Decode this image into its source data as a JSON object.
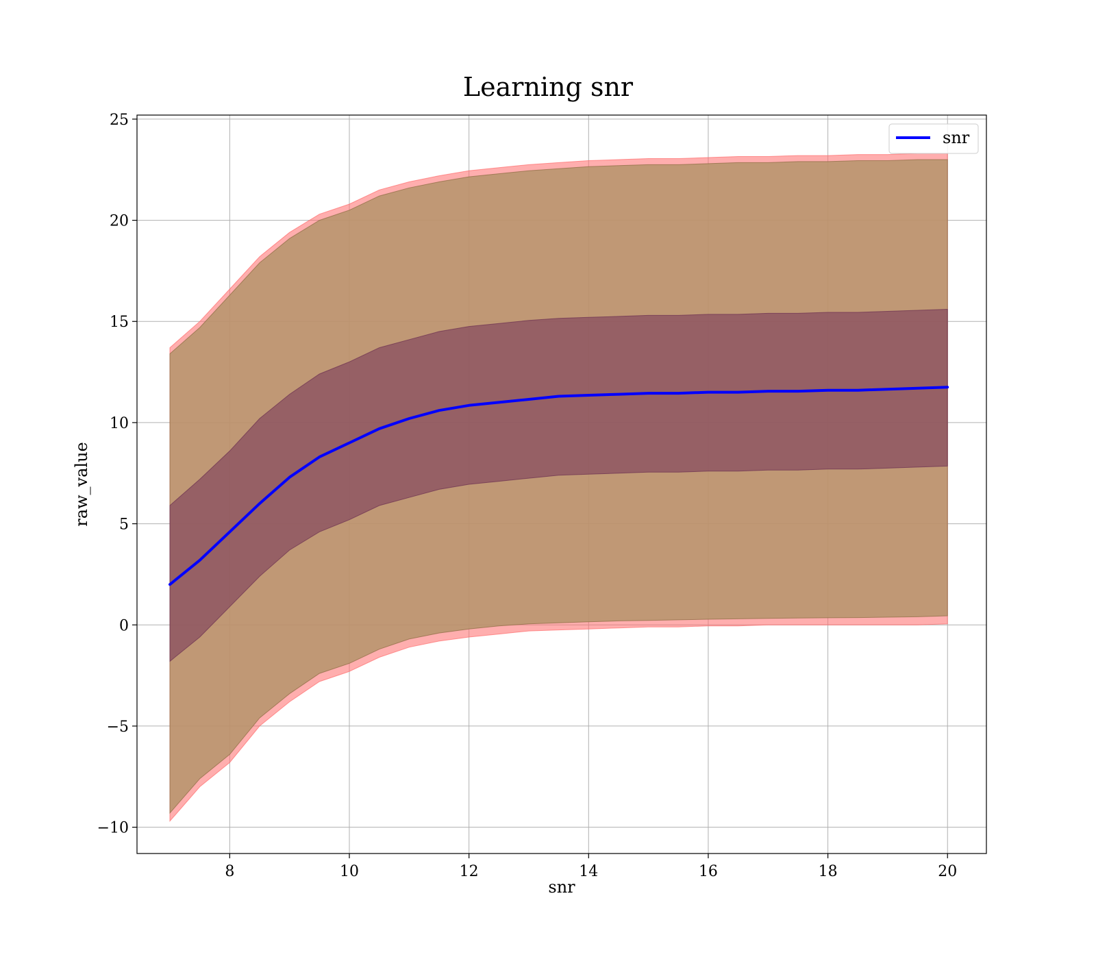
{
  "chart_data": {
    "type": "line",
    "title": "Learning snr",
    "xlabel": "snr",
    "ylabel": "raw_value",
    "xlim": [
      6.45,
      20.65
    ],
    "ylim": [
      -11.3,
      25.2
    ],
    "xticks": [
      8,
      10,
      12,
      14,
      16,
      18,
      20
    ],
    "yticks": [
      -10,
      -5,
      0,
      5,
      10,
      15,
      20,
      25
    ],
    "xtick_labels": [
      "8",
      "10",
      "12",
      "14",
      "16",
      "18",
      "20"
    ],
    "ytick_labels": [
      "−10",
      "−5",
      "0",
      "5",
      "10",
      "15",
      "20",
      "25"
    ],
    "grid": true,
    "legend": {
      "position": "top-right",
      "entries": [
        "snr"
      ]
    },
    "colors": {
      "line": "#0000ff",
      "outer_band": "#ff6b6b",
      "middle_band": "#b5946b",
      "inner_band": "#7a3a5a",
      "grid": "#b0b0b0"
    },
    "x": [
      7.0,
      7.5,
      8.0,
      8.5,
      9.0,
      9.5,
      10.0,
      10.5,
      11.0,
      11.5,
      12.0,
      12.5,
      13.0,
      13.5,
      14.0,
      14.5,
      15.0,
      15.5,
      16.0,
      16.5,
      17.0,
      17.5,
      18.0,
      18.5,
      19.0,
      19.5,
      20.0
    ],
    "series": [
      {
        "name": "snr",
        "values": [
          2.0,
          3.2,
          4.6,
          6.0,
          7.3,
          8.3,
          9.0,
          9.7,
          10.2,
          10.6,
          10.85,
          11.0,
          11.15,
          11.3,
          11.35,
          11.4,
          11.45,
          11.45,
          11.5,
          11.5,
          11.55,
          11.55,
          11.6,
          11.6,
          11.65,
          11.7,
          11.75
        ]
      }
    ],
    "bands": [
      {
        "role": "outer",
        "lower": [
          -9.7,
          -8.0,
          -6.8,
          -5.0,
          -3.8,
          -2.8,
          -2.3,
          -1.6,
          -1.1,
          -0.8,
          -0.6,
          -0.45,
          -0.3,
          -0.25,
          -0.2,
          -0.15,
          -0.1,
          -0.1,
          -0.05,
          -0.05,
          0.0,
          0.0,
          0.0,
          0.0,
          0.0,
          0.0,
          0.05
        ],
        "upper": [
          13.7,
          15.0,
          16.6,
          18.2,
          19.4,
          20.3,
          20.8,
          21.5,
          21.9,
          22.2,
          22.45,
          22.6,
          22.75,
          22.85,
          22.95,
          23.0,
          23.05,
          23.05,
          23.1,
          23.15,
          23.15,
          23.2,
          23.2,
          23.25,
          23.25,
          23.3,
          23.3
        ]
      },
      {
        "role": "middle",
        "lower": [
          -9.3,
          -7.6,
          -6.4,
          -4.6,
          -3.4,
          -2.4,
          -1.9,
          -1.2,
          -0.7,
          -0.4,
          -0.2,
          -0.05,
          0.05,
          0.1,
          0.15,
          0.2,
          0.22,
          0.25,
          0.28,
          0.3,
          0.32,
          0.34,
          0.35,
          0.36,
          0.38,
          0.4,
          0.45
        ],
        "upper": [
          13.4,
          14.7,
          16.3,
          17.9,
          19.1,
          20.0,
          20.5,
          21.2,
          21.6,
          21.9,
          22.15,
          22.3,
          22.45,
          22.55,
          22.65,
          22.7,
          22.75,
          22.75,
          22.8,
          22.85,
          22.85,
          22.9,
          22.9,
          22.95,
          22.95,
          23.0,
          23.0
        ]
      },
      {
        "role": "inner",
        "lower": [
          -1.8,
          -0.6,
          0.9,
          2.4,
          3.7,
          4.6,
          5.2,
          5.9,
          6.3,
          6.7,
          6.95,
          7.1,
          7.25,
          7.4,
          7.45,
          7.5,
          7.55,
          7.55,
          7.6,
          7.6,
          7.65,
          7.65,
          7.7,
          7.7,
          7.75,
          7.8,
          7.85
        ],
        "upper": [
          5.9,
          7.2,
          8.6,
          10.2,
          11.4,
          12.4,
          13.0,
          13.7,
          14.1,
          14.5,
          14.75,
          14.9,
          15.05,
          15.15,
          15.2,
          15.25,
          15.3,
          15.3,
          15.35,
          15.35,
          15.4,
          15.4,
          15.45,
          15.45,
          15.5,
          15.55,
          15.6
        ]
      }
    ]
  }
}
